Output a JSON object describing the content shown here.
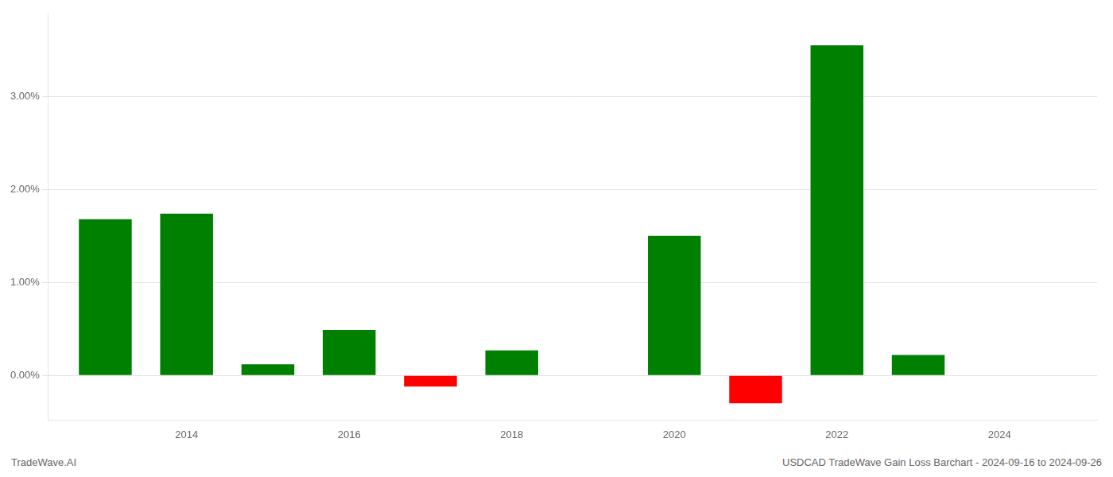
{
  "chart_data": {
    "type": "bar",
    "x": [
      2013,
      2014,
      2015,
      2016,
      2017,
      2018,
      2019,
      2020,
      2021,
      2022,
      2023
    ],
    "values": [
      1.68,
      1.74,
      0.12,
      0.49,
      -0.12,
      0.27,
      0.0,
      1.5,
      -0.3,
      3.55,
      0.22
    ],
    "colors": [
      "#008000",
      "#008000",
      "#008000",
      "#008000",
      "#ff0000",
      "#008000",
      "#008000",
      "#008000",
      "#ff0000",
      "#008000",
      "#008000"
    ],
    "xlim": [
      2012.3,
      2025.2
    ],
    "xticks": [
      2014,
      2016,
      2018,
      2020,
      2022,
      2024
    ],
    "ylim": [
      -0.48,
      3.9
    ],
    "yticks": [
      {
        "value": 0.0,
        "label": "0.00%"
      },
      {
        "value": 1.0,
        "label": "1.00%"
      },
      {
        "value": 2.0,
        "label": "2.00%"
      },
      {
        "value": 3.0,
        "label": "3.00%"
      }
    ],
    "grid": true,
    "annotations": [
      "TradeWave.AI",
      "USDCAD TradeWave Gain Loss Barchart - 2024-09-16 to 2024-09-26"
    ]
  }
}
